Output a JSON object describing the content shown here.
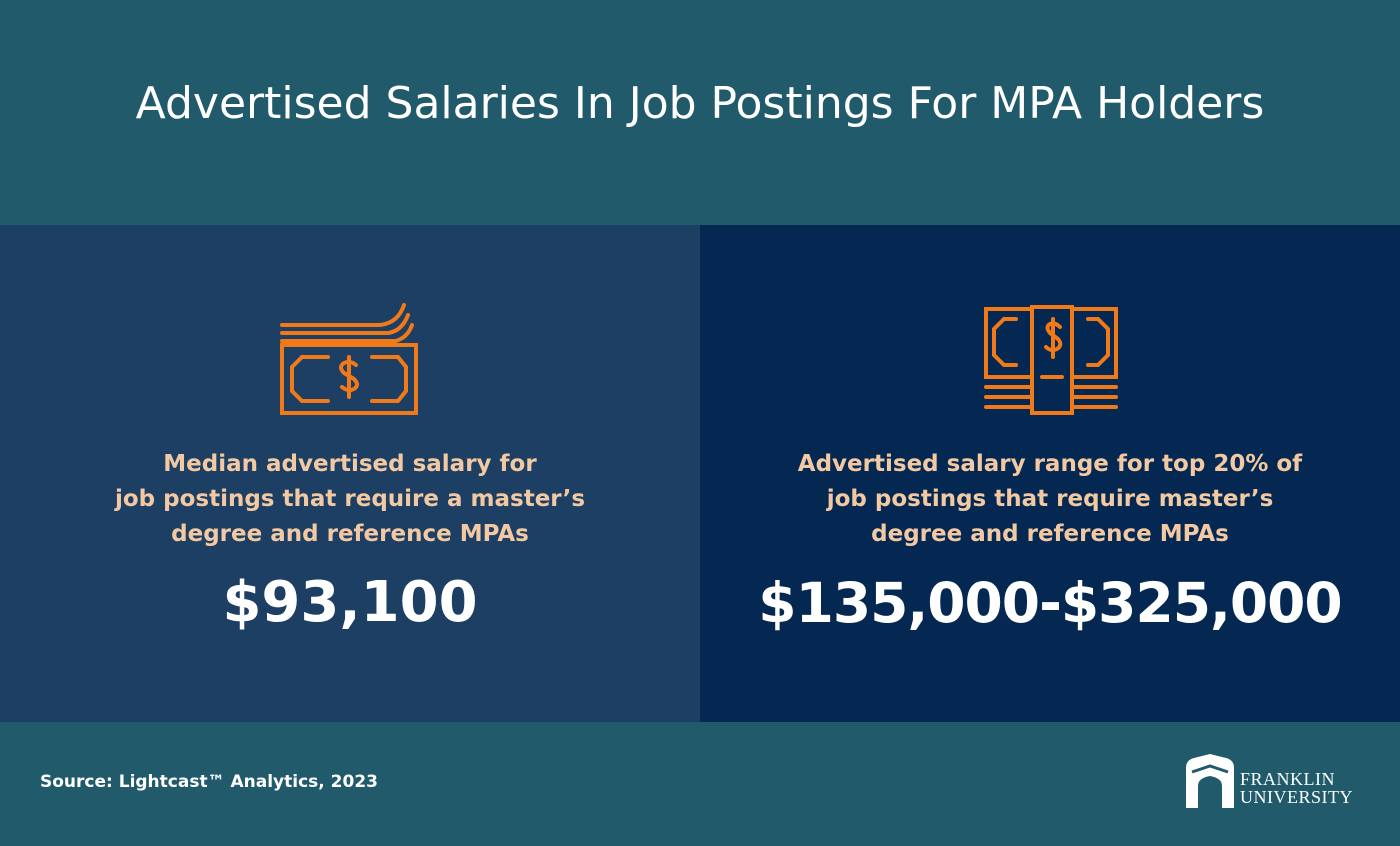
{
  "header": {
    "title": "Advertised Salaries In Job Postings For MPA Holders"
  },
  "left_panel": {
    "icon": "cash-bills-icon",
    "description": [
      "Median advertised salary for",
      "job postings that require a master’s",
      "degree and reference MPAs"
    ],
    "value": "$93,100"
  },
  "right_panel": {
    "icon": "cash-stack-icon",
    "description": [
      "Advertised salary range for top 20% of",
      "job postings that require master’s",
      "degree and reference MPAs"
    ],
    "value": "$135,000-$325,000"
  },
  "footer": {
    "source": "Source: Lightcast™ Analytics, 2023",
    "logo_line1": "FRANKLIN",
    "logo_line2": "UNIVERSITY"
  },
  "colors": {
    "background": "#215a6b",
    "left_panel": "#1c3f63",
    "right_panel": "#042851",
    "accent_orange": "#f07a1a",
    "description_text": "#f2c9a2"
  }
}
